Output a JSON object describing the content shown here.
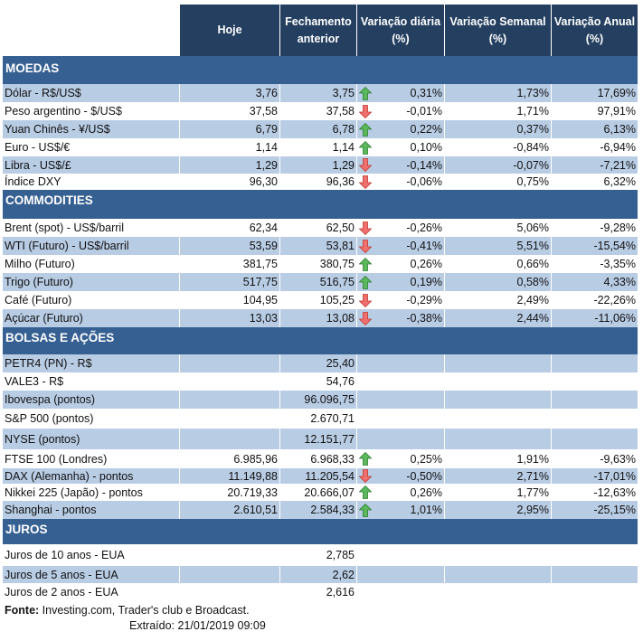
{
  "header": {
    "columns": [
      "Hoje",
      "Fechamento anterior",
      "Variação diária (%)",
      "Variação Semanal (%)",
      "Variação Anual (%)"
    ]
  },
  "colors": {
    "header_bg": "#243f60",
    "section_bg": "#366092",
    "stripe": "#b8cce4",
    "up_arrow": "#3a9a3a",
    "down_arrow": "#e05050"
  },
  "sections": [
    {
      "title": "MOEDAS",
      "rows": [
        {
          "label": "Dólar - R$/US$",
          "hoje": "3,76",
          "fechamento": "3,75",
          "trend": "up",
          "diaria": "0,31%",
          "semanal": "1,73%",
          "anual": "17,69%"
        },
        {
          "label": "Peso argentino - $/US$",
          "hoje": "37,58",
          "fechamento": "37,58",
          "trend": "down",
          "diaria": "-0,01%",
          "semanal": "1,71%",
          "anual": "97,91%"
        },
        {
          "label": "Yuan Chinês - ¥/US$",
          "hoje": "6,79",
          "fechamento": "6,78",
          "trend": "up",
          "diaria": "0,22%",
          "semanal": "0,37%",
          "anual": "6,13%"
        },
        {
          "label": "Euro - US$/€",
          "hoje": "1,14",
          "fechamento": "1,14",
          "trend": "up",
          "diaria": "0,10%",
          "semanal": "-0,84%",
          "anual": "-6,94%"
        },
        {
          "label": "Libra - US$/£",
          "hoje": "1,29",
          "fechamento": "1,29",
          "trend": "down",
          "diaria": "-0,14%",
          "semanal": "-0,07%",
          "anual": "-7,21%"
        },
        {
          "label": "Índice DXY",
          "hoje": "96,30",
          "fechamento": "96,36",
          "trend": "down",
          "diaria": "-0,06%",
          "semanal": "0,75%",
          "anual": "6,32%"
        }
      ]
    },
    {
      "title": "COMMODITIES",
      "rows": [
        {
          "label": "Brent (spot) - US$/barril",
          "hoje": "62,34",
          "fechamento": "62,50",
          "trend": "down",
          "diaria": "-0,26%",
          "semanal": "5,06%",
          "anual": "-9,28%"
        },
        {
          "label": "WTI (Futuro) - US$/barril",
          "hoje": "53,59",
          "fechamento": "53,81",
          "trend": "down",
          "diaria": "-0,41%",
          "semanal": "5,51%",
          "anual": "-15,54%"
        },
        {
          "label": "Milho (Futuro)",
          "hoje": "381,75",
          "fechamento": "380,75",
          "trend": "up",
          "diaria": "0,26%",
          "semanal": "0,66%",
          "anual": "-3,35%"
        },
        {
          "label": "Trigo (Futuro)",
          "hoje": "517,75",
          "fechamento": "516,75",
          "trend": "up",
          "diaria": "0,19%",
          "semanal": "0,58%",
          "anual": "4,33%"
        },
        {
          "label": "Café (Futuro)",
          "hoje": "104,95",
          "fechamento": "105,25",
          "trend": "down",
          "diaria": "-0,29%",
          "semanal": "2,49%",
          "anual": "-22,26%"
        },
        {
          "label": "Açúcar (Futuro)",
          "hoje": "13,03",
          "fechamento": "13,08",
          "trend": "down",
          "diaria": "-0,38%",
          "semanal": "2,44%",
          "anual": "-11,06%"
        }
      ]
    },
    {
      "title": "BOLSAS E AÇÕES",
      "rows": [
        {
          "label": "PETR4 (PN) - R$",
          "hoje": "",
          "fechamento": "25,40",
          "trend": "",
          "diaria": "",
          "semanal": "",
          "anual": ""
        },
        {
          "label": "VALE3 - R$",
          "hoje": "",
          "fechamento": "54,76",
          "trend": "",
          "diaria": "",
          "semanal": "",
          "anual": ""
        },
        {
          "label": "Ibovespa (pontos)",
          "hoje": "",
          "fechamento": "96.096,75",
          "trend": "",
          "diaria": "",
          "semanal": "",
          "anual": ""
        },
        {
          "label": "S&P 500 (pontos)",
          "hoje": "",
          "fechamento": "2.670,71",
          "trend": "",
          "diaria": "",
          "semanal": "",
          "anual": ""
        },
        {
          "label": "NYSE (pontos)",
          "hoje": "",
          "fechamento": "12.151,77",
          "trend": "",
          "diaria": "",
          "semanal": "",
          "anual": ""
        },
        {
          "label": "FTSE 100 (Londres)",
          "hoje": "6.985,96",
          "fechamento": "6.968,33",
          "trend": "up",
          "diaria": "0,25%",
          "semanal": "1,91%",
          "anual": "-9,63%"
        },
        {
          "label": "DAX (Alemanha) - pontos",
          "hoje": "11.149,88",
          "fechamento": "11.205,54",
          "trend": "down",
          "diaria": "-0,50%",
          "semanal": "2,71%",
          "anual": "-17,01%"
        },
        {
          "label": "Nikkei 225 (Japão) - pontos",
          "hoje": "20.719,33",
          "fechamento": "20.666,07",
          "trend": "up",
          "diaria": "0,26%",
          "semanal": "1,77%",
          "anual": "-12,63%"
        },
        {
          "label": "Shanghai - pontos",
          "hoje": "2.610,51",
          "fechamento": "2.584,33",
          "trend": "up",
          "diaria": "1,01%",
          "semanal": "2,95%",
          "anual": "-25,15%"
        }
      ]
    },
    {
      "title": "JUROS",
      "rows": [
        {
          "label": "Juros de 10 anos - EUA",
          "hoje": "",
          "fechamento": "2,785",
          "trend": "",
          "diaria": "",
          "semanal": "",
          "anual": ""
        },
        {
          "label": "Juros de 5 anos - EUA",
          "hoje": "",
          "fechamento": "2,62",
          "trend": "",
          "diaria": "",
          "semanal": "",
          "anual": ""
        },
        {
          "label": "Juros de 2 anos - EUA",
          "hoje": "",
          "fechamento": "2,616",
          "trend": "",
          "diaria": "",
          "semanal": "",
          "anual": ""
        }
      ]
    }
  ],
  "footer": {
    "source_label": "Fonte:",
    "source_text": " Investing.com, Trader's club e Broadcast.",
    "extracted": "Extraído:  21/01/2019 09:09"
  }
}
